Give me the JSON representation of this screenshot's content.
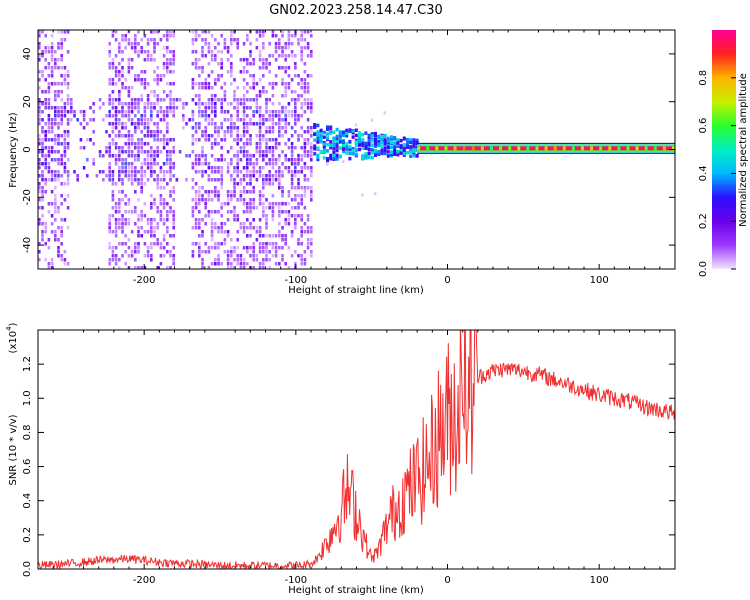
{
  "title": "GN02.2023.258.14.47.C30",
  "chart_data": [
    {
      "type": "heatmap",
      "xlabel": "Height of straight line (km)",
      "ylabel": "Frequency (Hz)",
      "xlim": [
        -270,
        150
      ],
      "ylim": [
        -50,
        50
      ],
      "xticks": [
        -200,
        -100,
        0,
        100
      ],
      "yticks": [
        -40,
        -20,
        0,
        20,
        40
      ],
      "colorbar": {
        "label": "Normalized spectral amplitude",
        "range": [
          0,
          1
        ],
        "ticks": [
          "0.0",
          "0.2",
          "0.4",
          "0.6",
          "0.8"
        ],
        "colors": [
          "#f0e4ff",
          "#9e38ff",
          "#6a00e8",
          "#2a10ff",
          "#00b8ff",
          "#00f0c0",
          "#28ff28",
          "#c8f000",
          "#ffb400",
          "#ff2020",
          "#ff0096"
        ]
      },
      "regions": [
        {
          "x": [
            -270,
            -90
          ],
          "freq_spread_hz": 50,
          "amplitude": "0.1-0.3",
          "note": "broadband noise"
        },
        {
          "x": [
            -90,
            -20
          ],
          "freq_center_hz": 3,
          "freq_spread_hz": 6,
          "amplitude": "0.3-0.5"
        },
        {
          "x": [
            -20,
            150
          ],
          "freq_center_hz": 0.5,
          "amplitude": "0.9-1.0",
          "note": "carrier line near 0 Hz"
        }
      ]
    },
    {
      "type": "line",
      "xlabel": "Height of straight line (km)",
      "ylabel": "SNR (10 * v/v)",
      "yscale_label": "(x10",
      "yscale_exp": "4",
      "yscale_close": ")",
      "xlim": [
        -270,
        150
      ],
      "ylim": [
        0,
        1.4
      ],
      "xticks": [
        -200,
        -100,
        0,
        100
      ],
      "yticks": [
        "0.0",
        "0.2",
        "0.4",
        "0.6",
        "0.8",
        "1.0",
        "1.2"
      ],
      "color": "#f03030",
      "series": [
        {
          "x": [
            -270,
            -250,
            -230,
            -210,
            -190,
            -170,
            -150,
            -130,
            -110,
            -95,
            -88,
            -82,
            -76,
            -70,
            -66,
            -62,
            -58,
            -54,
            -50,
            -46,
            -42,
            -38,
            -34,
            -30,
            -26,
            -22,
            -18,
            -14,
            -10,
            -6,
            -2,
            2,
            6,
            10,
            14,
            18,
            22,
            26,
            30,
            36,
            42,
            50,
            60,
            70,
            80,
            90,
            100,
            110,
            120,
            130,
            140,
            150
          ],
          "y": [
            0.02,
            0.03,
            0.05,
            0.06,
            0.04,
            0.03,
            0.02,
            0.02,
            0.02,
            0.02,
            0.04,
            0.12,
            0.22,
            0.35,
            0.45,
            0.38,
            0.28,
            0.15,
            0.06,
            0.1,
            0.2,
            0.3,
            0.35,
            0.42,
            0.45,
            0.5,
            0.55,
            0.6,
            0.68,
            0.78,
            0.85,
            0.9,
            0.95,
            1.0,
            1.05,
            1.1,
            1.13,
            1.15,
            1.16,
            1.17,
            1.17,
            1.16,
            1.14,
            1.11,
            1.08,
            1.05,
            1.02,
            1.0,
            0.98,
            0.95,
            0.93,
            0.91
          ]
        }
      ]
    }
  ]
}
